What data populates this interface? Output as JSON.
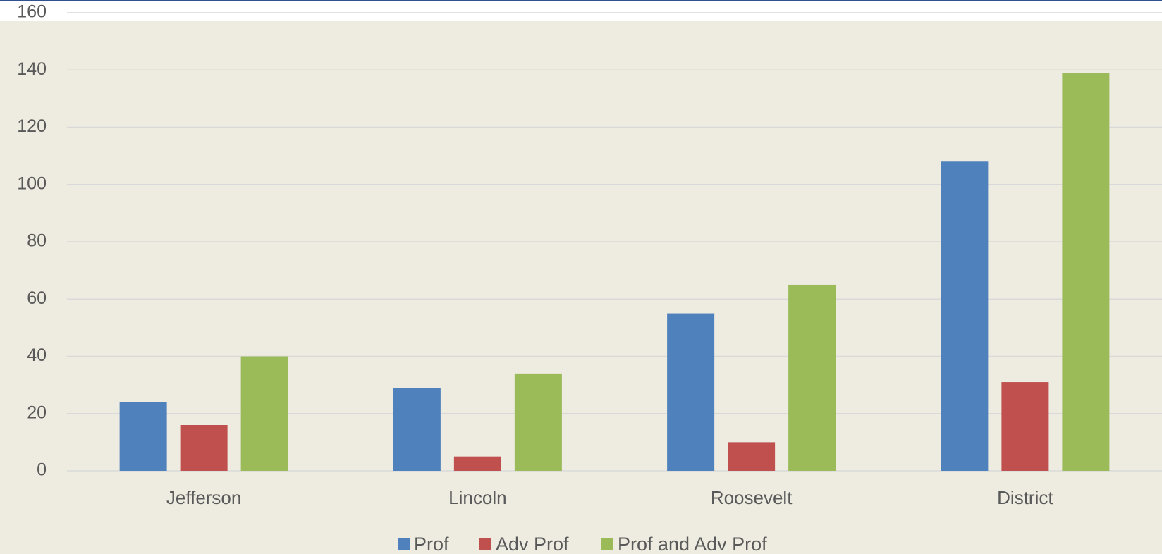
{
  "chart_data": {
    "type": "bar",
    "categories": [
      "Jefferson",
      "Lincoln",
      "Roosevelt",
      "District"
    ],
    "series": [
      {
        "name": "Prof",
        "color": "#4f81bd",
        "values": [
          24,
          29,
          55,
          108
        ]
      },
      {
        "name": "Adv Prof",
        "color": "#c0504d",
        "values": [
          16,
          5,
          10,
          31
        ]
      },
      {
        "name": "Prof and Adv Prof",
        "color": "#9bbb59",
        "values": [
          40,
          34,
          65,
          139
        ]
      }
    ],
    "ylim": [
      0,
      160
    ],
    "yticks": [
      0,
      20,
      40,
      60,
      80,
      100,
      120,
      140,
      160
    ],
    "grid": true,
    "legend": "bottom"
  }
}
